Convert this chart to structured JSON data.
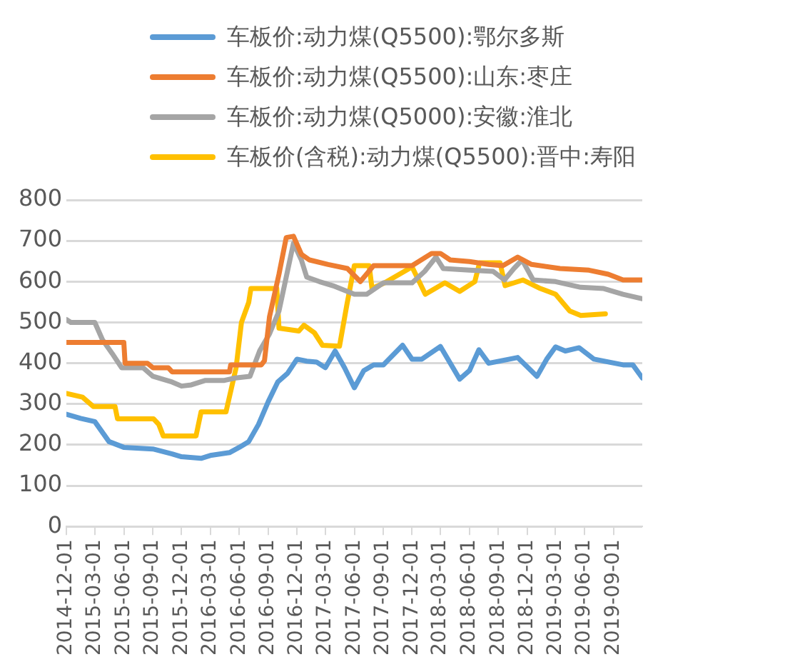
{
  "chart_data": {
    "type": "line",
    "xlim": [
      "2014-12-01",
      "2019-12-01"
    ],
    "xticks": [
      "2014-12-01",
      "2015-03-01",
      "2015-06-01",
      "2015-09-01",
      "2015-12-01",
      "2016-03-01",
      "2016-06-01",
      "2016-09-01",
      "2016-12-01",
      "2017-03-01",
      "2017-06-01",
      "2017-09-01",
      "2017-12-01",
      "2018-03-01",
      "2018-06-01",
      "2018-09-01",
      "2018-12-01",
      "2019-03-01",
      "2019-06-01",
      "2019-09-01"
    ],
    "ylim": [
      0,
      800
    ],
    "yticks": [
      0,
      100,
      200,
      300,
      400,
      500,
      600,
      700,
      800
    ],
    "grid": "y",
    "legend": "top",
    "series": [
      {
        "name": "车板价:动力煤(Q5500):鄂尔多斯",
        "color": "#5b9bd5",
        "x": [
          "2014-12-01",
          "2015-01-15",
          "2015-03-01",
          "2015-04-15",
          "2015-06-01",
          "2015-09-01",
          "2015-11-01",
          "2015-12-01",
          "2016-02-01",
          "2016-03-01",
          "2016-05-01",
          "2016-06-01",
          "2016-07-01",
          "2016-08-01",
          "2016-09-01",
          "2016-10-01",
          "2016-11-01",
          "2016-12-01",
          "2017-01-01",
          "2017-02-01",
          "2017-03-01",
          "2017-04-01",
          "2017-05-01",
          "2017-06-01",
          "2017-07-01",
          "2017-08-01",
          "2017-09-01",
          "2017-11-01",
          "2017-12-01",
          "2018-01-01",
          "2018-03-01",
          "2018-05-01",
          "2018-06-01",
          "2018-07-01",
          "2018-08-01",
          "2018-11-01",
          "2019-01-01",
          "2019-02-01",
          "2019-03-01",
          "2019-04-01",
          "2019-05-15",
          "2019-07-01",
          "2019-10-01",
          "2019-11-01",
          "2019-12-01"
        ],
        "values": [
          275,
          265,
          257,
          208,
          194,
          190,
          178,
          171,
          167,
          174,
          181,
          194,
          208,
          250,
          306,
          354,
          375,
          410,
          405,
          403,
          389,
          430,
          389,
          340,
          382,
          396,
          396,
          444,
          410,
          410,
          441,
          361,
          382,
          433,
          400,
          414,
          368,
          410,
          440,
          430,
          438,
          410,
          396,
          396,
          364
        ]
      },
      {
        "name": "车板价:动力煤(Q5500):山东:枣庄",
        "color": "#ed7d31",
        "x": [
          "2014-12-01",
          "2015-06-01",
          "2015-06-05",
          "2015-08-15",
          "2015-09-01",
          "2015-10-20",
          "2015-11-01",
          "2016-05-01",
          "2016-05-05",
          "2016-08-10",
          "2016-08-20",
          "2016-09-05",
          "2016-10-05",
          "2016-10-28",
          "2016-11-20",
          "2016-12-15",
          "2017-01-10",
          "2017-03-10",
          "2017-05-10",
          "2017-06-20",
          "2017-08-01",
          "2017-12-01",
          "2018-02-01",
          "2018-03-01",
          "2018-04-01",
          "2018-06-01",
          "2018-08-01",
          "2018-09-15",
          "2018-11-01",
          "2018-12-15",
          "2019-03-15",
          "2019-06-15",
          "2019-08-15",
          "2019-10-01",
          "2019-12-01"
        ],
        "values": [
          451,
          451,
          400,
          400,
          389,
          389,
          379,
          379,
          396,
          396,
          406,
          514,
          618,
          708,
          711,
          667,
          653,
          642,
          632,
          600,
          639,
          639,
          669,
          669,
          653,
          649,
          642,
          639,
          660,
          642,
          632,
          628,
          618,
          604,
          604
        ]
      },
      {
        "name": "车板价:动力煤(Q5000):安徽:淮北",
        "color": "#a5a5a5",
        "x": [
          "2014-12-01",
          "2014-12-15",
          "2015-03-01",
          "2015-03-25",
          "2015-04-25",
          "2015-05-25",
          "2015-08-01",
          "2015-09-01",
          "2015-11-01",
          "2015-12-01",
          "2016-01-01",
          "2016-02-15",
          "2016-04-15",
          "2016-05-20",
          "2016-07-05",
          "2016-08-05",
          "2016-09-05",
          "2016-10-05",
          "2016-10-28",
          "2016-11-20",
          "2016-12-15",
          "2017-01-01",
          "2017-02-10",
          "2017-03-25",
          "2017-06-01",
          "2017-07-10",
          "2017-09-01",
          "2017-12-01",
          "2018-01-10",
          "2018-02-15",
          "2018-03-10",
          "2018-06-01",
          "2018-08-15",
          "2018-09-20",
          "2018-10-20",
          "2018-11-15",
          "2018-12-20",
          "2019-03-01",
          "2019-05-20",
          "2019-08-01",
          "2019-10-01",
          "2019-12-01"
        ],
        "values": [
          507,
          500,
          500,
          458,
          424,
          389,
          389,
          368,
          354,
          344,
          347,
          358,
          358,
          364,
          368,
          431,
          472,
          528,
          611,
          694,
          653,
          611,
          600,
          590,
          569,
          569,
          597,
          597,
          625,
          660,
          632,
          628,
          625,
          604,
          632,
          653,
          604,
          600,
          586,
          583,
          569,
          558
        ]
      },
      {
        "name": "车板价(含税):动力煤(Q5500):晋中:寿阳",
        "color": "#ffc000",
        "x": [
          "2014-12-01",
          "2015-01-21",
          "2015-02-24",
          "2015-05-04",
          "2015-05-12",
          "2015-09-03",
          "2015-09-20",
          "2015-10-04",
          "2016-01-16",
          "2016-02-01",
          "2016-04-20",
          "2016-05-22",
          "2016-06-08",
          "2016-07-01",
          "2016-07-08",
          "2016-09-28",
          "2016-10-05",
          "2016-12-07",
          "2016-12-23",
          "2017-01-25",
          "2017-02-20",
          "2017-04-15",
          "2017-05-08",
          "2017-06-01",
          "2017-07-18",
          "2017-07-27",
          "2017-09-05",
          "2017-12-01",
          "2018-01-12",
          "2018-03-15",
          "2018-05-01",
          "2018-06-18",
          "2018-07-03",
          "2018-09-06",
          "2018-09-22",
          "2018-11-18",
          "2019-01-12",
          "2019-03-01",
          "2019-04-15",
          "2019-05-20",
          "2019-08-06"
        ],
        "values": [
          326,
          317,
          294,
          294,
          264,
          264,
          250,
          222,
          222,
          281,
          281,
          389,
          500,
          549,
          583,
          583,
          486,
          479,
          493,
          475,
          444,
          442,
          542,
          639,
          639,
          583,
          597,
          636,
          569,
          597,
          576,
          600,
          646,
          646,
          590,
          604,
          583,
          569,
          528,
          517,
          521
        ]
      }
    ]
  }
}
